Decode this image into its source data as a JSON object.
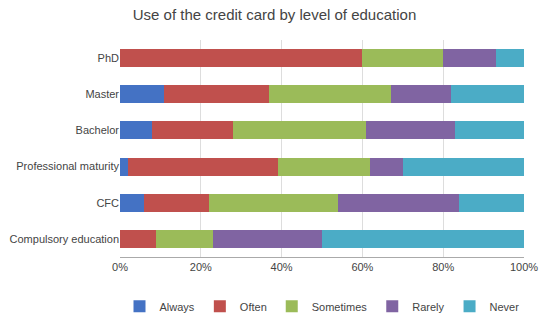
{
  "chart_data": {
    "type": "bar",
    "orientation": "horizontal",
    "stacked": true,
    "title": "Use of the credit card by level of education",
    "categories": [
      "PhD",
      "Master",
      "Bachelor",
      "Professional maturity",
      "CFC",
      "Compulsory education"
    ],
    "series": [
      {
        "name": "Always",
        "color": "#4472C4",
        "values": [
          0,
          11,
          8,
          2,
          6,
          0
        ]
      },
      {
        "name": "Often",
        "color": "#C0504D",
        "values": [
          60,
          26,
          20,
          37,
          16,
          9
        ]
      },
      {
        "name": "Sometimes",
        "color": "#9BBB59",
        "values": [
          20,
          30,
          33,
          23,
          32,
          14
        ]
      },
      {
        "name": "Rarely",
        "color": "#8064A2",
        "values": [
          13,
          15,
          22,
          8,
          30,
          27
        ]
      },
      {
        "name": "Never",
        "color": "#4BACC6",
        "values": [
          7,
          18,
          17,
          30,
          16,
          50
        ]
      }
    ],
    "xlim": [
      0,
      100
    ],
    "xticks": [
      {
        "value": 0,
        "label": "0%"
      },
      {
        "value": 20,
        "label": "20%"
      },
      {
        "value": 40,
        "label": "40%"
      },
      {
        "value": 60,
        "label": "60%"
      },
      {
        "value": 80,
        "label": "80%"
      },
      {
        "value": 100,
        "label": "100%"
      }
    ],
    "grid": true,
    "legend": "bottom"
  }
}
